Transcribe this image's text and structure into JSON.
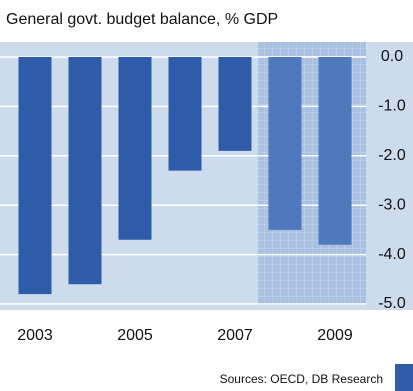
{
  "chart_data": {
    "type": "bar",
    "subtitle": "General govt. budget balance, % GDP",
    "categories": [
      "2003",
      null,
      "2005",
      null,
      "2007",
      null,
      "2009"
    ],
    "values": [
      -4.8,
      -4.6,
      -3.7,
      -2.3,
      -1.9,
      -3.5,
      -3.8
    ],
    "colors": [
      "#2e5ca8",
      "#2e5ca8",
      "#2e5ca8",
      "#2e5ca8",
      "#2e5ca8",
      "#4f78bd",
      "#4f78bd"
    ],
    "ylim": [
      -5,
      0
    ],
    "yticks": [
      {
        "value": 0,
        "label": "0.0"
      },
      {
        "value": -1,
        "label": "-1.0"
      },
      {
        "value": -2,
        "label": "-2.0"
      },
      {
        "value": -3,
        "label": "-3.0"
      },
      {
        "value": -4,
        "label": "-4.0"
      },
      {
        "value": -5,
        "label": "-5.0"
      }
    ],
    "grid": true,
    "source": "Sources: OECD, DB Research"
  }
}
